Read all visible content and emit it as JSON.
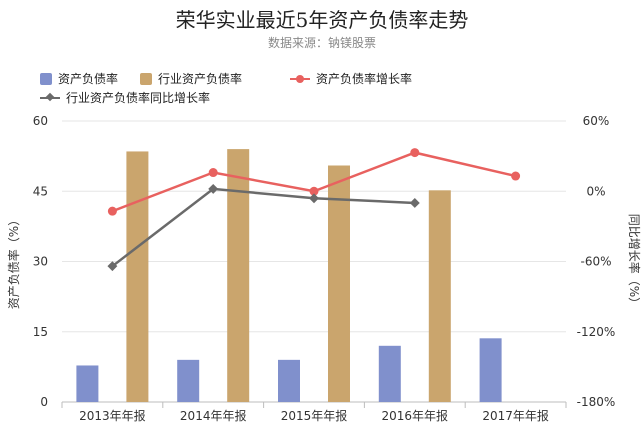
{
  "title": "荣华实业最近5年资产负债率走势",
  "subtitle": "数据来源：钠镁股票",
  "colors": {
    "bar_asset": "#8090cc",
    "bar_industry": "#caa56d",
    "line_growth": "#e8615f",
    "line_industry_growth": "#6a6a6a",
    "grid": "#e6e6e6",
    "axis_text": "#333333"
  },
  "legend": [
    {
      "label": "资产负债率",
      "kind": "box",
      "color": "#8090cc"
    },
    {
      "label": "行业资产负债率",
      "kind": "box",
      "color": "#caa56d"
    },
    {
      "label": "资产负债率增长率",
      "kind": "line-dot",
      "color": "#e8615f"
    },
    {
      "label": "行业资产负债率同比增长率",
      "kind": "line-diamond",
      "color": "#6a6a6a"
    }
  ],
  "chart_data": {
    "type": "bar",
    "categories": [
      "2013年年报",
      "2014年年报",
      "2015年年报",
      "2016年年报",
      "2017年年报"
    ],
    "series": [
      {
        "name": "资产负债率",
        "type": "bar",
        "axis": "left",
        "values": [
          7.8,
          9.0,
          9.0,
          12.0,
          13.6
        ]
      },
      {
        "name": "行业资产负债率",
        "type": "bar",
        "axis": "left",
        "values": [
          53.5,
          54.0,
          50.5,
          45.2,
          null
        ]
      },
      {
        "name": "资产负债率增长率",
        "type": "line",
        "axis": "right",
        "values": [
          -17,
          16,
          0,
          33,
          13
        ]
      },
      {
        "name": "行业资产负债率同比增长率",
        "type": "line",
        "axis": "right",
        "values": [
          -64,
          2,
          -6,
          -10,
          null
        ]
      }
    ],
    "y_left": {
      "label": "资产负债率（%）",
      "ticks": [
        "0",
        "15",
        "30",
        "45",
        "60"
      ],
      "ylim": [
        0,
        60
      ]
    },
    "y_right": {
      "label": "同比增长率（%）",
      "ticks": [
        "-180%",
        "-120%",
        "-60%",
        "0%",
        "60%"
      ],
      "ylim": [
        -180,
        60
      ]
    },
    "grid": true,
    "legend_position": "top-left"
  }
}
